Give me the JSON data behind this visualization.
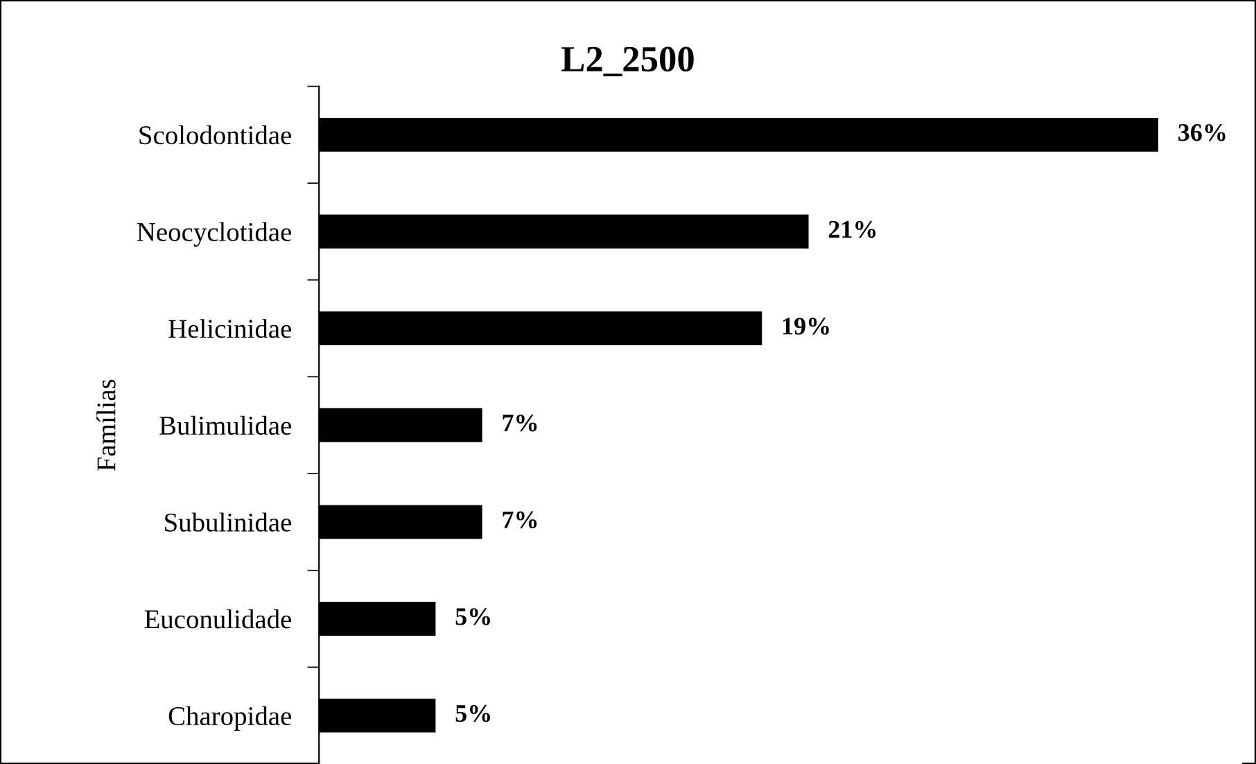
{
  "chart_data": {
    "type": "bar",
    "orientation": "horizontal",
    "title": "L2_2500",
    "ylabel": "Famílias",
    "categories": [
      "Scolodontidae",
      "Neocyclotidae",
      "Helicinidae",
      "Bulimulidae",
      "Subulinidae",
      "Euconulidade",
      "Charopidae"
    ],
    "values": [
      36,
      21,
      19,
      7,
      7,
      5,
      5
    ],
    "value_labels": [
      "36%",
      "21%",
      "19%",
      "7%",
      "7%",
      "5%",
      "5%"
    ],
    "color": "#000000",
    "legend": false,
    "grid": false
  }
}
